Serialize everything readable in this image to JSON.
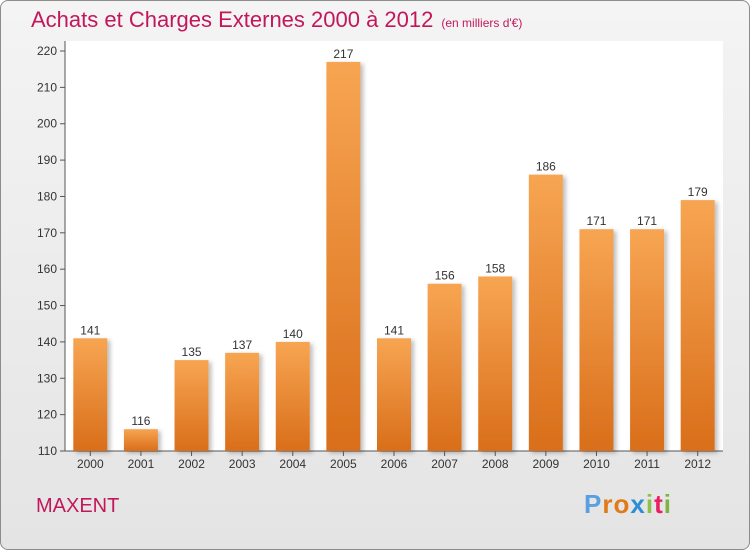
{
  "title": "Achats et Charges Externes 2000 à 2012",
  "unit": "(en milliers d'€)",
  "city": "MAXENT",
  "logo": "Proxiti",
  "colors": {
    "bar": "#f08a30",
    "title": "#c2185b"
  },
  "chart_data": {
    "type": "bar",
    "title": "Achats et Charges Externes 2000 à 2012",
    "subtitle": "(en milliers d'€)",
    "categories": [
      "2000",
      "2001",
      "2002",
      "2003",
      "2004",
      "2005",
      "2006",
      "2007",
      "2008",
      "2009",
      "2010",
      "2011",
      "2012"
    ],
    "values": [
      141,
      116,
      135,
      137,
      140,
      217,
      141,
      156,
      158,
      186,
      171,
      171,
      179
    ],
    "ylim": [
      110,
      220
    ],
    "yticks": [
      110,
      120,
      130,
      140,
      150,
      160,
      170,
      180,
      190,
      200,
      210,
      220
    ],
    "grid": false
  }
}
